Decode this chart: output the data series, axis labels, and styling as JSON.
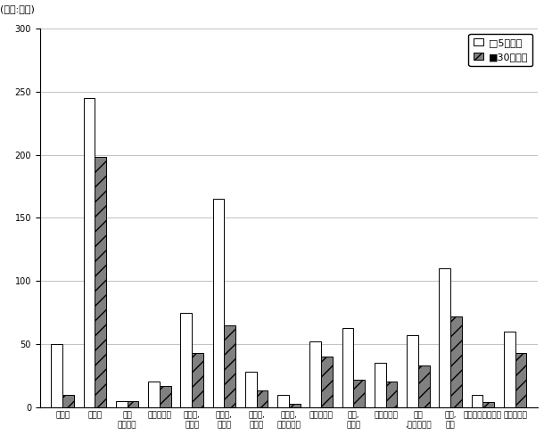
{
  "categories": [
    "建設業",
    "製造業",
    "電気\n・ガス業",
    "情報通信業",
    "運輸業,\n郵便業",
    "卸売業,\n小売業",
    "金融業,\n保険業",
    "不動産,\n物品賃貸業",
    "学術研究業",
    "宿泊,\n飲食業",
    "生活関連業",
    "教育\n,学習支援業",
    "医療,\n福祉",
    "複合サービス事業",
    "サービス業"
  ],
  "values_5": [
    50,
    245,
    5,
    20,
    75,
    165,
    28,
    10,
    52,
    63,
    35,
    57,
    110,
    10,
    60
  ],
  "values_30": [
    10,
    198,
    5,
    17,
    43,
    65,
    13,
    3,
    40,
    22,
    20,
    33,
    72,
    4,
    43
  ],
  "color_5": "#ffffff",
  "color_30": "#808080",
  "edge_color": "#000000",
  "hatch_30": "//",
  "ylim": [
    0,
    300
  ],
  "yticks": [
    0,
    50,
    100,
    150,
    200,
    250,
    300
  ],
  "unit_label": "(単位:千人)",
  "legend_5": "□5人以上",
  "legend_30": "■30人以上",
  "background_color": "#ffffff",
  "bar_width": 0.35,
  "title_fontsize": 10,
  "tick_fontsize": 7,
  "legend_fontsize": 8
}
